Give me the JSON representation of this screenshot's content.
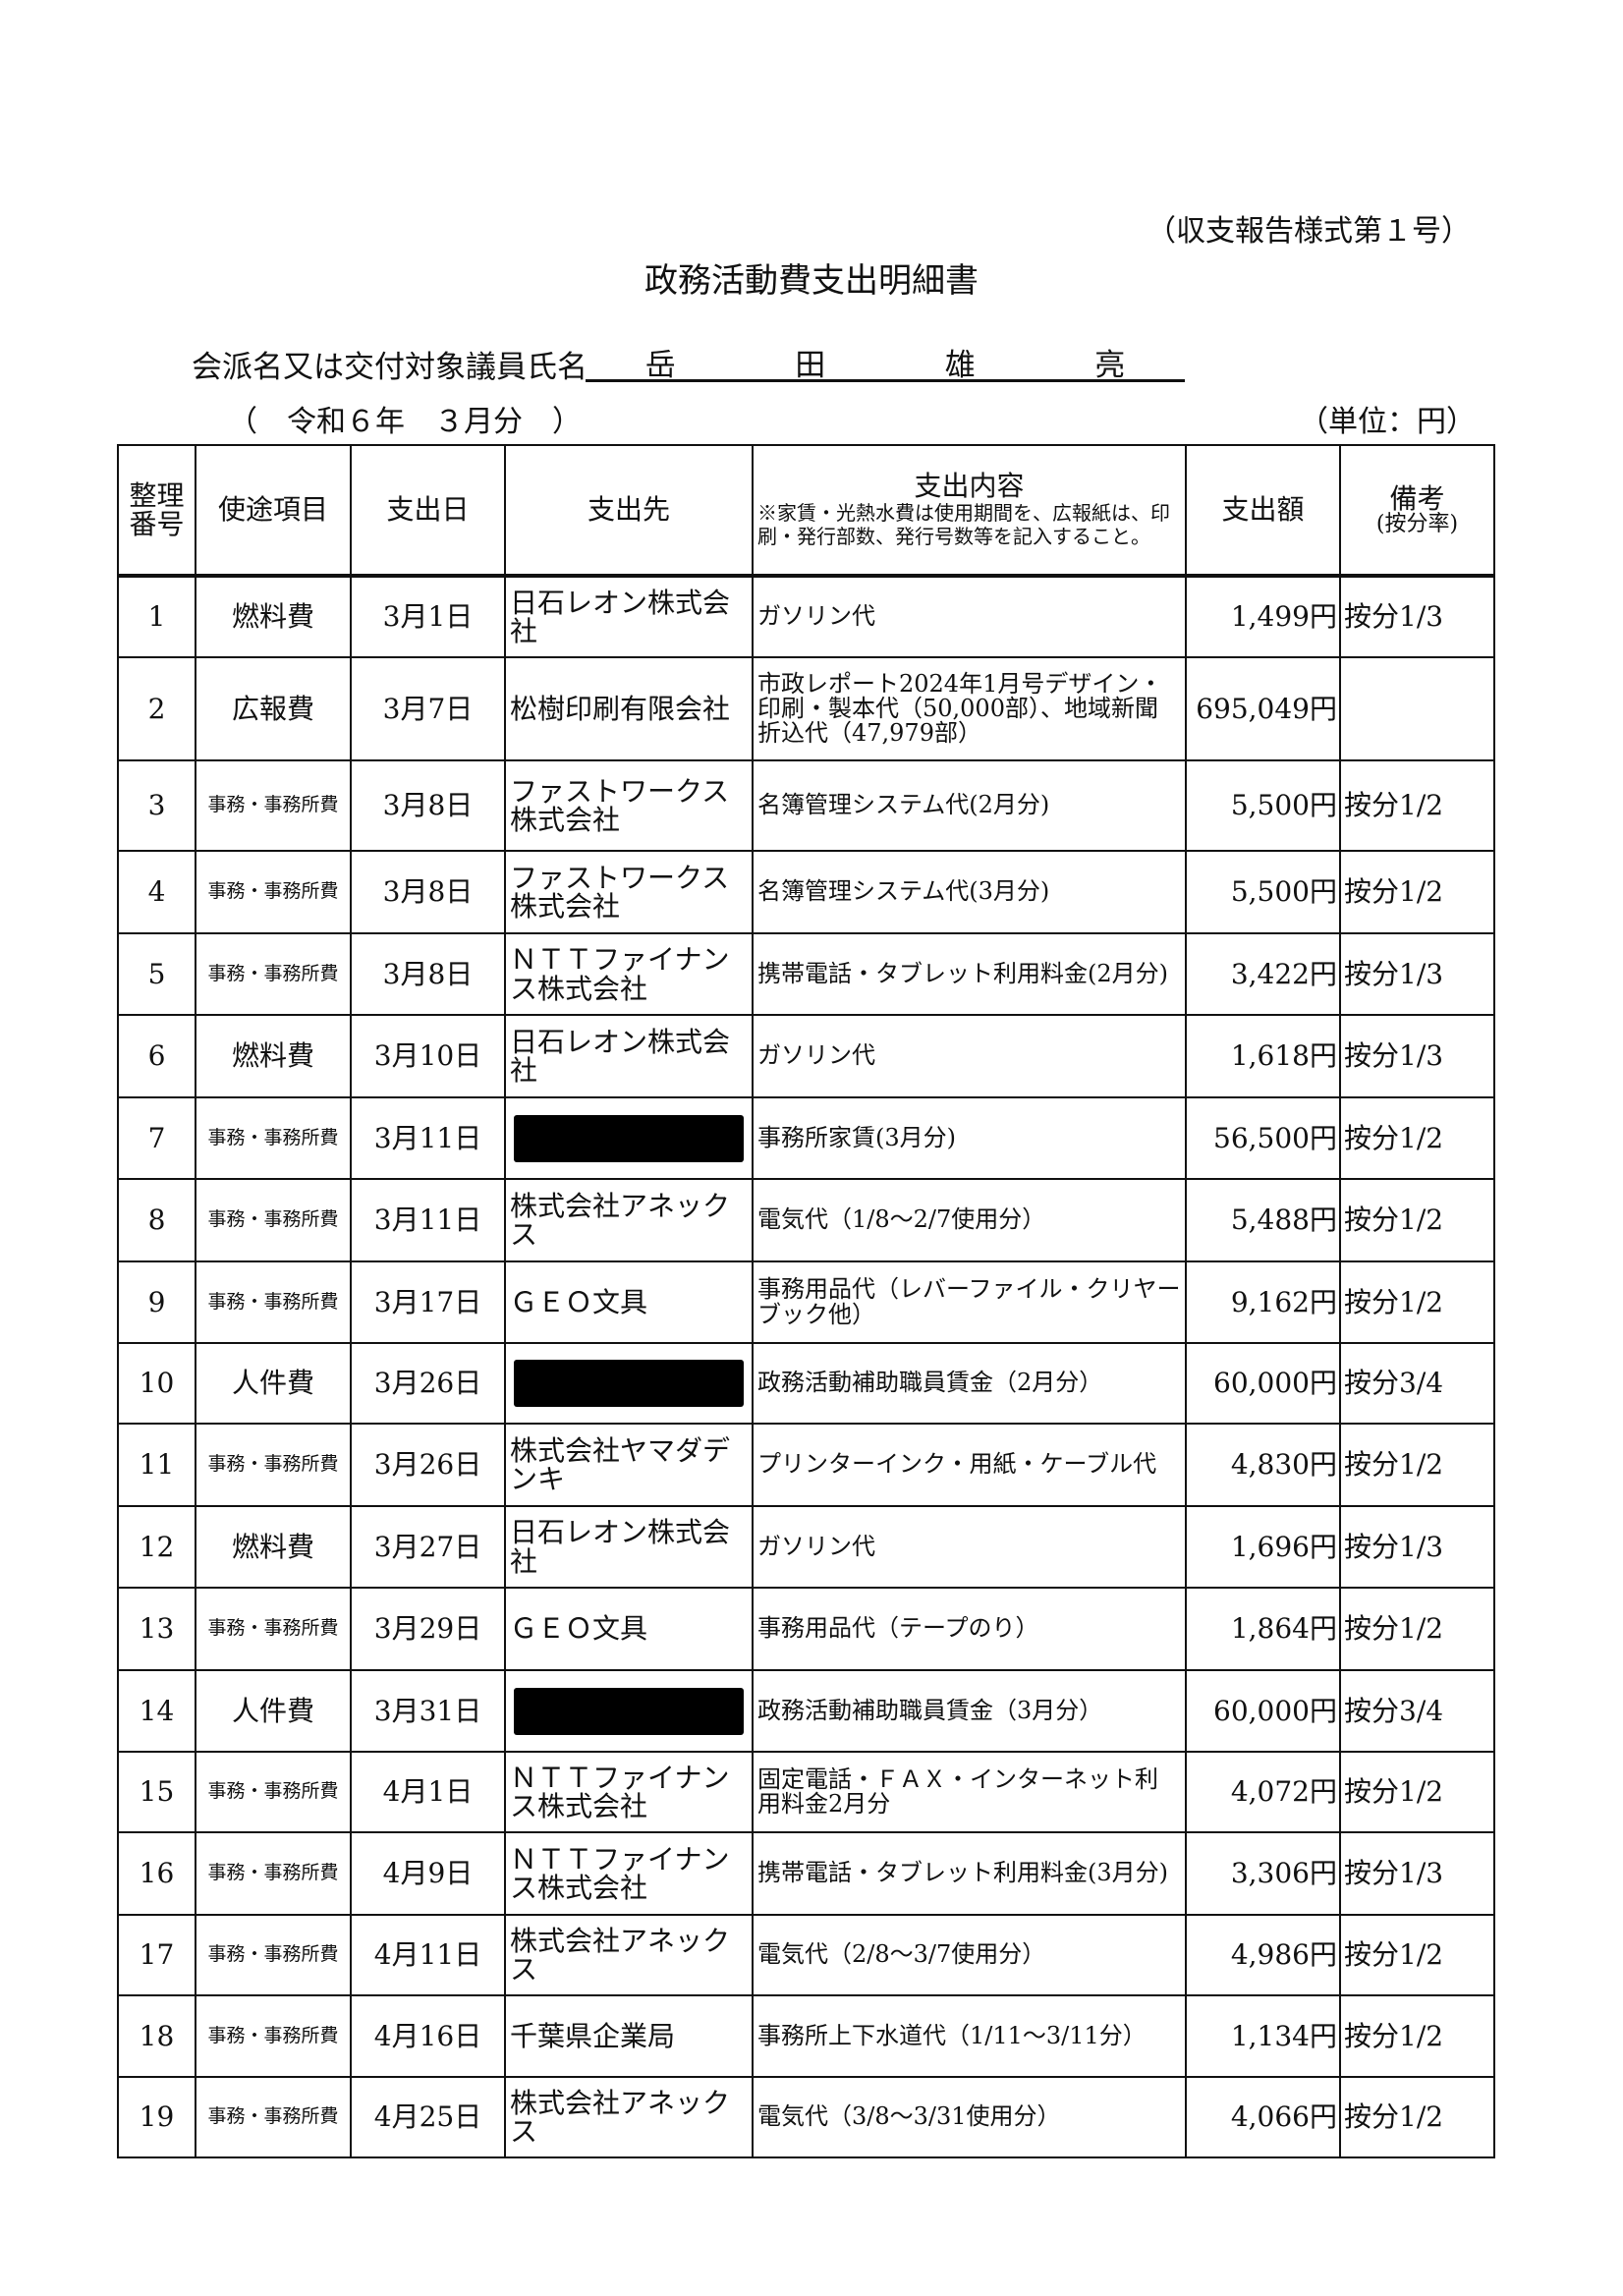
{
  "form_number": "（収支報告様式第１号）",
  "title": "政務活動費支出明細書",
  "member": {
    "label": "会派名又は交付対象議員氏名",
    "name_chars": [
      "岳",
      "田",
      "雄",
      "亮"
    ]
  },
  "period": "（　令和６年　３月分　）",
  "unit": "（単位：円）",
  "table": {
    "headers": {
      "no": "整理番号",
      "category": "使途項目",
      "date": "支出日",
      "payee": "支出先",
      "content": "支出内容",
      "content_note": "※家賃・光熱水費は使用期間を、広報紙は、印刷・発行部数、発行号数等を記入すること。",
      "amount": "支出額",
      "remarks": "備考",
      "remarks_sub": "(按分率)"
    },
    "rows": [
      {
        "no": "1",
        "category": "燃料費",
        "date": "3月1日",
        "payee": "日石レオン株式会社",
        "content": "ガソリン代",
        "amount": "1,499円",
        "remarks": "按分1/3"
      },
      {
        "no": "2",
        "category": "広報費",
        "date": "3月7日",
        "payee": "松樹印刷有限会社",
        "content": "市政レポート2024年1月号デザイン・印刷・製本代（50,000部）、地域新聞折込代（47,979部）",
        "amount": "695,049円",
        "remarks": ""
      },
      {
        "no": "3",
        "category": "事務・事務所費",
        "date": "3月8日",
        "payee": "ファストワークス株式会社",
        "content": "名簿管理システム代(2月分)",
        "amount": "5,500円",
        "remarks": "按分1/2"
      },
      {
        "no": "4",
        "category": "事務・事務所費",
        "date": "3月8日",
        "payee": "ファストワークス株式会社",
        "content": "名簿管理システム代(3月分)",
        "amount": "5,500円",
        "remarks": "按分1/2"
      },
      {
        "no": "5",
        "category": "事務・事務所費",
        "date": "3月8日",
        "payee": "ＮＴＴファイナンス株式会社",
        "content": "携帯電話・タブレット利用料金(2月分)",
        "amount": "3,422円",
        "remarks": "按分1/3"
      },
      {
        "no": "6",
        "category": "燃料費",
        "date": "3月10日",
        "payee": "日石レオン株式会社",
        "content": "ガソリン代",
        "amount": "1,618円",
        "remarks": "按分1/3"
      },
      {
        "no": "7",
        "category": "事務・事務所費",
        "date": "3月11日",
        "payee": "",
        "redacted": true,
        "content": "事務所家賃(3月分)",
        "amount": "56,500円",
        "remarks": "按分1/2"
      },
      {
        "no": "8",
        "category": "事務・事務所費",
        "date": "3月11日",
        "payee": "株式会社アネックス",
        "content": "電気代（1/8～2/7使用分）",
        "amount": "5,488円",
        "remarks": "按分1/2"
      },
      {
        "no": "9",
        "category": "事務・事務所費",
        "date": "3月17日",
        "payee": "ＧＥＯ文具",
        "content": "事務用品代（レバーファイル・クリヤーブック他）",
        "amount": "9,162円",
        "remarks": "按分1/2"
      },
      {
        "no": "10",
        "category": "人件費",
        "date": "3月26日",
        "payee": "",
        "redacted": true,
        "content": "政務活動補助職員賃金（2月分）",
        "amount": "60,000円",
        "remarks": "按分3/4"
      },
      {
        "no": "11",
        "category": "事務・事務所費",
        "date": "3月26日",
        "payee": "株式会社ヤマダデンキ",
        "content": "プリンターインク・用紙・ケーブル代",
        "amount": "4,830円",
        "remarks": "按分1/2"
      },
      {
        "no": "12",
        "category": "燃料費",
        "date": "3月27日",
        "payee": "日石レオン株式会社",
        "content": "ガソリン代",
        "amount": "1,696円",
        "remarks": "按分1/3"
      },
      {
        "no": "13",
        "category": "事務・事務所費",
        "date": "3月29日",
        "payee": "ＧＥＯ文具",
        "content": "事務用品代（テープのり）",
        "amount": "1,864円",
        "remarks": "按分1/2"
      },
      {
        "no": "14",
        "category": "人件費",
        "date": "3月31日",
        "payee": "",
        "redacted": true,
        "content": "政務活動補助職員賃金（3月分）",
        "amount": "60,000円",
        "remarks": "按分3/4"
      },
      {
        "no": "15",
        "category": "事務・事務所費",
        "date": "4月1日",
        "payee": "ＮＴＴファイナンス株式会社",
        "content": "固定電話・ＦＡＸ・インターネット利用料金2月分",
        "amount": "4,072円",
        "remarks": "按分1/2"
      },
      {
        "no": "16",
        "category": "事務・事務所費",
        "date": "4月9日",
        "payee": "ＮＴＴファイナンス株式会社",
        "content": "携帯電話・タブレット利用料金(3月分)",
        "amount": "3,306円",
        "remarks": "按分1/3"
      },
      {
        "no": "17",
        "category": "事務・事務所費",
        "date": "4月11日",
        "payee": "株式会社アネックス",
        "content": "電気代（2/8～3/7使用分）",
        "amount": "4,986円",
        "remarks": "按分1/2"
      },
      {
        "no": "18",
        "category": "事務・事務所費",
        "date": "4月16日",
        "payee": "千葉県企業局",
        "content": "事務所上下水道代（1/11～3/11分）",
        "amount": "1,134円",
        "remarks": "按分1/2"
      },
      {
        "no": "19",
        "category": "事務・事務所費",
        "date": "4月25日",
        "payee": "株式会社アネックス",
        "content": "電気代（3/8～3/31使用分）",
        "amount": "4,066円",
        "remarks": "按分1/2"
      }
    ]
  }
}
